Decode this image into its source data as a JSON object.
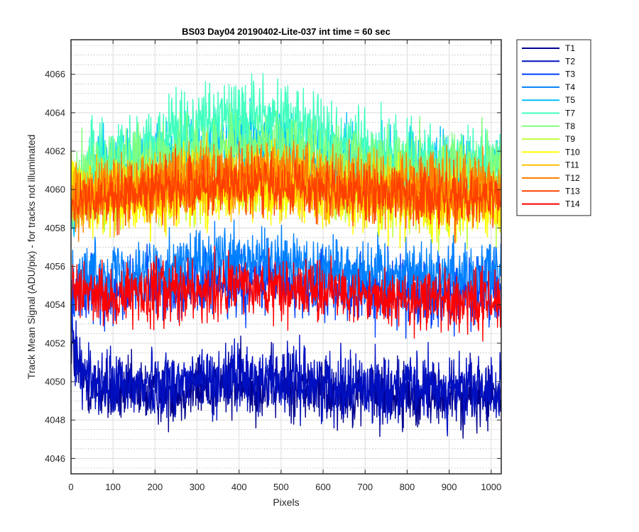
{
  "chart_data": {
    "type": "line",
    "title": "BS03 Day04 20190402-Lite-037 int time = 60 sec",
    "xlabel": "Pixels",
    "ylabel": "Track Mean Signal (ADU/pix) - for tracks not illuminated",
    "xlim": [
      0,
      1024
    ],
    "ylim": [
      4045.2,
      4067.8
    ],
    "xticks": [
      0,
      100,
      200,
      300,
      400,
      500,
      600,
      700,
      800,
      900,
      1000
    ],
    "yticks": [
      4046,
      4048,
      4050,
      4052,
      4054,
      4056,
      4058,
      4060,
      4062,
      4064,
      4066
    ],
    "grid": true,
    "minor_grid": true,
    "legend_position": "outside-top-right",
    "series": [
      {
        "name": "T1",
        "color": "#00008f",
        "mean": 4049.2,
        "noise": 1.2,
        "hump": 0.6,
        "start": 4052.0,
        "n": 1024
      },
      {
        "name": "T2",
        "color": "#0010c0",
        "mean": 4049.6,
        "noise": 1.2,
        "hump": 0.6,
        "start": 4052.5,
        "n": 1024
      },
      {
        "name": "T3",
        "color": "#0040ff",
        "mean": 4054.6,
        "noise": 1.2,
        "hump": 0.6,
        "start": 4054.0,
        "n": 1024
      },
      {
        "name": "T4",
        "color": "#0080ff",
        "mean": 4055.6,
        "noise": 1.2,
        "hump": 0.6,
        "start": 4055.0,
        "n": 1024
      },
      {
        "name": "T5",
        "color": "#00c0ff",
        "mean": 4060.8,
        "noise": 1.3,
        "hump": 1.6,
        "start": 4058.0,
        "n": 1024
      },
      {
        "name": "T7",
        "color": "#40ffbf",
        "mean": 4061.2,
        "noise": 1.4,
        "hump": 2.6,
        "start": 4059.0,
        "n": 1024
      },
      {
        "name": "T8",
        "color": "#80ff80",
        "mean": 4061.0,
        "noise": 1.3,
        "hump": 1.2,
        "start": 4059.5,
        "n": 1024
      },
      {
        "name": "T9",
        "color": "#bfff40",
        "mean": 4059.6,
        "noise": 1.3,
        "hump": 0.8,
        "start": 4060.0,
        "n": 1024
      },
      {
        "name": "T10",
        "color": "#ffff00",
        "mean": 4059.2,
        "noise": 1.3,
        "hump": 0.8,
        "start": 4060.0,
        "n": 1024
      },
      {
        "name": "T11",
        "color": "#ffbf00",
        "mean": 4059.8,
        "noise": 1.2,
        "hump": 0.8,
        "start": 4059.5,
        "n": 1024
      },
      {
        "name": "T12",
        "color": "#ff8000",
        "mean": 4060.0,
        "noise": 1.2,
        "hump": 0.8,
        "start": 4059.0,
        "n": 1024
      },
      {
        "name": "T13",
        "color": "#ff4000",
        "mean": 4059.6,
        "noise": 1.1,
        "hump": 0.7,
        "start": 4058.5,
        "n": 1024
      },
      {
        "name": "T14",
        "color": "#ff0000",
        "mean": 4054.2,
        "noise": 1.1,
        "hump": 0.7,
        "start": 4055.0,
        "n": 1024
      }
    ]
  }
}
